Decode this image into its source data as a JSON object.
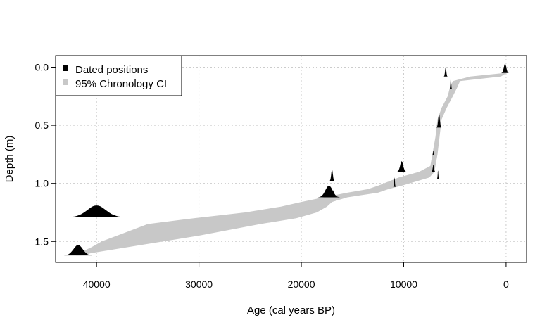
{
  "chart_data": {
    "type": "area",
    "xlabel": "Age (cal years BP)",
    "ylabel": "Depth (m)",
    "xlim": [
      44000,
      -2000
    ],
    "ylim": [
      -0.1,
      1.68
    ],
    "x_reversed": true,
    "y_reversed": true,
    "x_ticks": [
      40000,
      30000,
      20000,
      10000,
      0
    ],
    "x_tick_labels": [
      "40000",
      "30000",
      "20000",
      "10000",
      "0"
    ],
    "y_ticks": [
      0.0,
      0.5,
      1.0,
      1.5
    ],
    "y_tick_labels": [
      "0.0",
      "0.5",
      "1.0",
      "1.5"
    ],
    "grid": true,
    "legend": {
      "placement": "top-left",
      "items": [
        {
          "label": "Dated positions",
          "symbol": "square",
          "color": "#000000"
        },
        {
          "label": "95% Chronology CI",
          "symbol": "square",
          "color": "#c8c8c8"
        }
      ]
    },
    "colors": {
      "ci_band": "#c8c8c8",
      "dated": "#000000",
      "grid": "#cccccc"
    },
    "ci_band": [
      {
        "depth": 0.05,
        "young": -50,
        "old": 150
      },
      {
        "depth": 0.08,
        "young": 500,
        "old": 3500
      },
      {
        "depth": 0.12,
        "young": 4500,
        "old": 5200
      },
      {
        "depth": 0.18,
        "young": 4800,
        "old": 5500
      },
      {
        "depth": 0.25,
        "young": 5200,
        "old": 5700
      },
      {
        "depth": 0.35,
        "young": 5800,
        "old": 6300
      },
      {
        "depth": 0.45,
        "young": 6300,
        "old": 6700
      },
      {
        "depth": 0.6,
        "young": 6500,
        "old": 6900
      },
      {
        "depth": 0.75,
        "young": 6700,
        "old": 7200
      },
      {
        "depth": 0.85,
        "young": 6900,
        "old": 7400
      },
      {
        "depth": 0.9,
        "young": 7000,
        "old": 8500
      },
      {
        "depth": 0.95,
        "young": 7500,
        "old": 10500
      },
      {
        "depth": 1.02,
        "young": 10200,
        "old": 12500
      },
      {
        "depth": 1.05,
        "young": 11500,
        "old": 13500
      },
      {
        "depth": 1.08,
        "young": 12500,
        "old": 15500
      },
      {
        "depth": 1.12,
        "young": 15500,
        "old": 17800
      },
      {
        "depth": 1.16,
        "young": 17000,
        "old": 20000
      },
      {
        "depth": 1.2,
        "young": 17500,
        "old": 22000
      },
      {
        "depth": 1.25,
        "young": 18500,
        "old": 25500
      },
      {
        "depth": 1.3,
        "young": 20500,
        "old": 30500
      },
      {
        "depth": 1.35,
        "young": 24000,
        "old": 35000
      },
      {
        "depth": 1.4,
        "young": 27000,
        "old": 36500
      },
      {
        "depth": 1.45,
        "young": 30000,
        "old": 38000
      },
      {
        "depth": 1.5,
        "young": 33500,
        "old": 39500
      },
      {
        "depth": 1.55,
        "young": 37000,
        "old": 40500
      },
      {
        "depth": 1.6,
        "young": 40500,
        "old": 41700
      },
      {
        "depth": 1.62,
        "young": 41500,
        "old": 42000
      }
    ],
    "dated_positions": [
      {
        "age": 100,
        "depth": 0.05,
        "spread": 120,
        "height": 0.08
      },
      {
        "age": 5900,
        "depth": 0.08,
        "spread": 60,
        "height": 0.08
      },
      {
        "age": 5400,
        "depth": 0.19,
        "spread": 40,
        "height": 0.1
      },
      {
        "age": 6550,
        "depth": 0.52,
        "spread": 80,
        "height": 0.12
      },
      {
        "age": 7100,
        "depth": 0.76,
        "spread": 40,
        "height": 0.04
      },
      {
        "age": 7100,
        "depth": 0.9,
        "spread": 60,
        "height": 0.06
      },
      {
        "age": 10200,
        "depth": 0.9,
        "spread": 150,
        "height": 0.09
      },
      {
        "age": 6650,
        "depth": 0.96,
        "spread": 30,
        "height": 0.07
      },
      {
        "age": 10900,
        "depth": 1.03,
        "spread": 40,
        "height": 0.08
      },
      {
        "age": 17000,
        "depth": 0.98,
        "spread": 80,
        "height": 0.1
      },
      {
        "age": 17300,
        "depth": 1.12,
        "spread": 350,
        "height": 0.1
      },
      {
        "age": 16900,
        "depth": 1.12,
        "spread": 80,
        "height": 0.06
      },
      {
        "age": 40000,
        "depth": 1.29,
        "spread": 900,
        "height": 0.1
      },
      {
        "age": 41800,
        "depth": 1.62,
        "spread": 450,
        "height": 0.09
      }
    ]
  }
}
